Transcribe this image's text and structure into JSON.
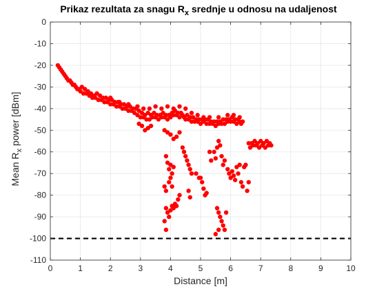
{
  "chart_data": {
    "type": "scatter",
    "title": {
      "prefix": "Prikaz rezultata za snagu R",
      "sub": "x",
      "suffix": " srednje u odnosu na udaljenost"
    },
    "xlabel": "Distance [m]",
    "ylabel": {
      "prefix": "Mean R",
      "sub": "x",
      "suffix": " power [dBm]"
    },
    "xlim": [
      0,
      10
    ],
    "ylim": [
      -110,
      0
    ],
    "xticks": [
      0,
      1,
      2,
      3,
      4,
      5,
      6,
      7,
      8,
      9,
      10
    ],
    "yticks": [
      0,
      -10,
      -20,
      -30,
      -40,
      -50,
      -60,
      -70,
      -80,
      -90,
      -100,
      -110
    ],
    "grid": true,
    "point_color": "#ff0000",
    "reference_line": {
      "y": -100,
      "style": "dashed",
      "color": "#000000"
    },
    "series": [
      {
        "values": [
          [
            0.25,
            -20
          ],
          [
            0.3,
            -21
          ],
          [
            0.35,
            -22
          ],
          [
            0.4,
            -23
          ],
          [
            0.45,
            -24
          ],
          [
            0.5,
            -25
          ],
          [
            0.55,
            -26
          ],
          [
            0.6,
            -27
          ],
          [
            0.65,
            -27
          ],
          [
            0.7,
            -28
          ],
          [
            0.75,
            -29
          ],
          [
            0.8,
            -29
          ],
          [
            0.85,
            -30
          ],
          [
            0.9,
            -31
          ],
          [
            0.95,
            -31
          ],
          [
            1.0,
            -32
          ],
          [
            1.05,
            -30
          ],
          [
            1.1,
            -33
          ],
          [
            1.15,
            -31
          ],
          [
            1.2,
            -33
          ],
          [
            1.25,
            -32
          ],
          [
            1.3,
            -34
          ],
          [
            1.35,
            -33
          ],
          [
            1.4,
            -35
          ],
          [
            1.45,
            -34
          ],
          [
            1.5,
            -35
          ],
          [
            1.55,
            -33
          ],
          [
            1.6,
            -36
          ],
          [
            1.65,
            -34
          ],
          [
            1.7,
            -36
          ],
          [
            1.75,
            -35
          ],
          [
            1.8,
            -37
          ],
          [
            1.85,
            -35
          ],
          [
            1.9,
            -37
          ],
          [
            1.95,
            -36
          ],
          [
            2.0,
            -38
          ],
          [
            2.05,
            -36
          ],
          [
            2.1,
            -38
          ],
          [
            2.15,
            -37
          ],
          [
            2.2,
            -39
          ],
          [
            2.25,
            -37
          ],
          [
            2.3,
            -39
          ],
          [
            2.35,
            -38
          ],
          [
            2.4,
            -40
          ],
          [
            2.45,
            -38
          ],
          [
            2.5,
            -40
          ],
          [
            2.55,
            -39
          ],
          [
            2.6,
            -41
          ],
          [
            2.65,
            -39
          ],
          [
            2.7,
            -41
          ],
          [
            2.75,
            -40
          ],
          [
            2.8,
            -42
          ],
          [
            2.85,
            -40
          ],
          [
            2.9,
            -43
          ],
          [
            2.95,
            -41
          ],
          [
            3.0,
            -44
          ],
          [
            3.05,
            -42
          ],
          [
            3.1,
            -44
          ],
          [
            3.15,
            -43
          ],
          [
            3.2,
            -45
          ],
          [
            3.25,
            -42
          ],
          [
            3.3,
            -45
          ],
          [
            3.35,
            -43
          ],
          [
            3.4,
            -44
          ],
          [
            3.45,
            -42
          ],
          [
            3.5,
            -44
          ],
          [
            3.55,
            -43
          ],
          [
            3.6,
            -45
          ],
          [
            3.65,
            -43
          ],
          [
            3.7,
            -44
          ],
          [
            3.75,
            -42
          ],
          [
            3.8,
            -44
          ],
          [
            3.85,
            -43
          ],
          [
            3.9,
            -45
          ],
          [
            3.95,
            -43
          ],
          [
            4.0,
            -44
          ],
          [
            4.05,
            -42
          ],
          [
            4.1,
            -43
          ],
          [
            4.15,
            -41
          ],
          [
            4.2,
            -43
          ],
          [
            4.25,
            -42
          ],
          [
            4.3,
            -44
          ],
          [
            4.35,
            -42
          ],
          [
            4.4,
            -43
          ],
          [
            4.45,
            -44
          ],
          [
            4.5,
            -45
          ],
          [
            4.55,
            -43
          ],
          [
            4.6,
            -45
          ],
          [
            4.65,
            -44
          ],
          [
            4.7,
            -46
          ],
          [
            4.75,
            -44
          ],
          [
            4.8,
            -46
          ],
          [
            4.85,
            -45
          ],
          [
            4.9,
            -46
          ],
          [
            4.95,
            -45
          ],
          [
            5.0,
            -47
          ],
          [
            5.05,
            -45
          ],
          [
            5.1,
            -46
          ],
          [
            5.15,
            -45
          ],
          [
            5.2,
            -47
          ],
          [
            5.25,
            -45
          ],
          [
            5.3,
            -47
          ],
          [
            5.35,
            -46
          ],
          [
            5.4,
            -47
          ],
          [
            5.45,
            -46
          ],
          [
            5.5,
            -48
          ],
          [
            5.55,
            -46
          ],
          [
            5.6,
            -47
          ],
          [
            5.65,
            -46
          ],
          [
            5.7,
            -47
          ],
          [
            5.75,
            -45
          ],
          [
            5.8,
            -47
          ],
          [
            5.85,
            -45
          ],
          [
            5.9,
            -46
          ],
          [
            5.95,
            -45
          ],
          [
            6.0,
            -46
          ],
          [
            6.05,
            -44
          ],
          [
            6.1,
            -46
          ],
          [
            6.15,
            -45
          ],
          [
            6.2,
            -47
          ],
          [
            6.25,
            -45
          ],
          [
            6.3,
            -46
          ],
          [
            6.35,
            -47
          ],
          [
            6.4,
            -46
          ],
          [
            2.0,
            -35
          ],
          [
            2.3,
            -37
          ],
          [
            2.6,
            -38
          ],
          [
            2.9,
            -39
          ],
          [
            3.1,
            -40
          ],
          [
            3.3,
            -40
          ],
          [
            3.5,
            -39
          ],
          [
            3.7,
            -40
          ],
          [
            3.9,
            -39
          ],
          [
            4.1,
            -40
          ],
          [
            4.3,
            -39
          ],
          [
            4.5,
            -40
          ],
          [
            4.7,
            -42
          ],
          [
            4.9,
            -43
          ],
          [
            5.1,
            -44
          ],
          [
            5.3,
            -44
          ],
          [
            5.6,
            -44
          ],
          [
            5.9,
            -43
          ],
          [
            6.1,
            -43
          ],
          [
            6.3,
            -44
          ],
          [
            2.95,
            -47
          ],
          [
            3.05,
            -48
          ],
          [
            3.15,
            -50
          ],
          [
            3.25,
            -49
          ],
          [
            3.35,
            -48
          ],
          [
            3.8,
            -50
          ],
          [
            3.9,
            -51
          ],
          [
            4.0,
            -52
          ],
          [
            4.1,
            -54
          ],
          [
            4.2,
            -53
          ],
          [
            4.3,
            -51
          ],
          [
            3.85,
            -62
          ],
          [
            3.9,
            -65
          ],
          [
            3.95,
            -68
          ],
          [
            4.0,
            -66
          ],
          [
            4.05,
            -70
          ],
          [
            4.1,
            -67
          ],
          [
            3.95,
            -74
          ],
          [
            4.0,
            -72
          ],
          [
            4.05,
            -76
          ],
          [
            3.8,
            -76
          ],
          [
            3.85,
            -78
          ],
          [
            3.85,
            -86
          ],
          [
            3.9,
            -88
          ],
          [
            3.95,
            -90
          ],
          [
            4.0,
            -87
          ],
          [
            4.05,
            -85
          ],
          [
            4.1,
            -86
          ],
          [
            4.15,
            -84
          ],
          [
            4.2,
            -85
          ],
          [
            4.25,
            -82
          ],
          [
            3.8,
            -92
          ],
          [
            3.85,
            -96
          ],
          [
            4.3,
            -80
          ],
          [
            4.4,
            -58
          ],
          [
            4.45,
            -60
          ],
          [
            4.5,
            -62
          ],
          [
            4.55,
            -64
          ],
          [
            4.6,
            -66
          ],
          [
            4.65,
            -68
          ],
          [
            4.6,
            -78
          ],
          [
            4.65,
            -81
          ],
          [
            4.7,
            -70
          ],
          [
            4.85,
            -70
          ],
          [
            4.95,
            -72
          ],
          [
            5.05,
            -74
          ],
          [
            5.1,
            -77
          ],
          [
            5.15,
            -80
          ],
          [
            5.2,
            -79
          ],
          [
            5.0,
            -72
          ],
          [
            5.3,
            -60
          ],
          [
            5.35,
            -64
          ],
          [
            5.45,
            -60
          ],
          [
            5.5,
            -63
          ],
          [
            5.55,
            -58
          ],
          [
            5.6,
            -55
          ],
          [
            5.65,
            -57
          ],
          [
            5.7,
            -62
          ],
          [
            5.75,
            -66
          ],
          [
            5.8,
            -64
          ],
          [
            5.55,
            -86
          ],
          [
            5.6,
            -88
          ],
          [
            5.65,
            -90
          ],
          [
            5.7,
            -92
          ],
          [
            5.75,
            -94
          ],
          [
            5.6,
            -96
          ],
          [
            5.5,
            -98
          ],
          [
            5.8,
            -96
          ],
          [
            5.85,
            -88
          ],
          [
            5.9,
            -68
          ],
          [
            5.95,
            -70
          ],
          [
            6.0,
            -72
          ],
          [
            6.05,
            -69
          ],
          [
            6.1,
            -71
          ],
          [
            6.15,
            -73
          ],
          [
            6.2,
            -67
          ],
          [
            6.25,
            -70
          ],
          [
            6.3,
            -66
          ],
          [
            6.35,
            -74
          ],
          [
            6.4,
            -76
          ],
          [
            6.45,
            -67
          ],
          [
            6.5,
            -66
          ],
          [
            6.55,
            -78
          ],
          [
            6.6,
            -74
          ],
          [
            6.6,
            -56
          ],
          [
            6.7,
            -56
          ],
          [
            6.8,
            -55
          ],
          [
            6.9,
            -56
          ],
          [
            7.0,
            -55
          ],
          [
            7.1,
            -56
          ],
          [
            7.2,
            -55
          ],
          [
            7.3,
            -56
          ],
          [
            6.75,
            -57
          ],
          [
            6.85,
            -57
          ],
          [
            7.05,
            -57
          ],
          [
            7.25,
            -57
          ],
          [
            6.65,
            -58
          ],
          [
            6.95,
            -58
          ],
          [
            7.15,
            -58
          ],
          [
            7.35,
            -57
          ]
        ]
      }
    ]
  }
}
